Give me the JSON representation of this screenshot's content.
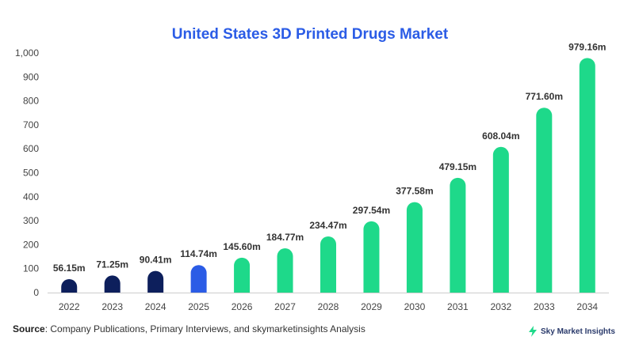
{
  "chart_data": {
    "type": "bar",
    "title": "United States 3D Printed Drugs Market",
    "xlabel": "",
    "ylabel": "",
    "categories": [
      "2022",
      "2023",
      "2024",
      "2025",
      "2026",
      "2027",
      "2028",
      "2029",
      "2030",
      "2031",
      "2032",
      "2033",
      "2034"
    ],
    "values": [
      56.15,
      71.25,
      90.41,
      114.74,
      145.6,
      184.77,
      234.47,
      297.54,
      377.58,
      479.15,
      608.04,
      771.6,
      979.16
    ],
    "data_labels": [
      "56.15m",
      "71.25m",
      "90.41m",
      "114.74m",
      "145.60m",
      "184.77m",
      "234.47m",
      "297.54m",
      "377.58m",
      "479.15m",
      "608.04m",
      "771.60m",
      "979.16m"
    ],
    "bar_colors": [
      "#0d1f5c",
      "#0d1f5c",
      "#0d1f5c",
      "#2b5ce6",
      "#1ed98a",
      "#1ed98a",
      "#1ed98a",
      "#1ed98a",
      "#1ed98a",
      "#1ed98a",
      "#1ed98a",
      "#1ed98a",
      "#1ed98a"
    ],
    "ylim": [
      0,
      1000
    ],
    "yticks": [
      "0",
      "100",
      "200",
      "300",
      "400",
      "500",
      "600",
      "700",
      "800",
      "900",
      "1,000"
    ],
    "grid": false,
    "legend": "none"
  },
  "source": {
    "label": "Source",
    "text": ": Company Publications, Primary Interviews, and skymarketinsights Analysis"
  },
  "brand": {
    "name": "Sky Market Insights",
    "icon": "lightning-bolt-icon",
    "color": "#1ed98a"
  }
}
